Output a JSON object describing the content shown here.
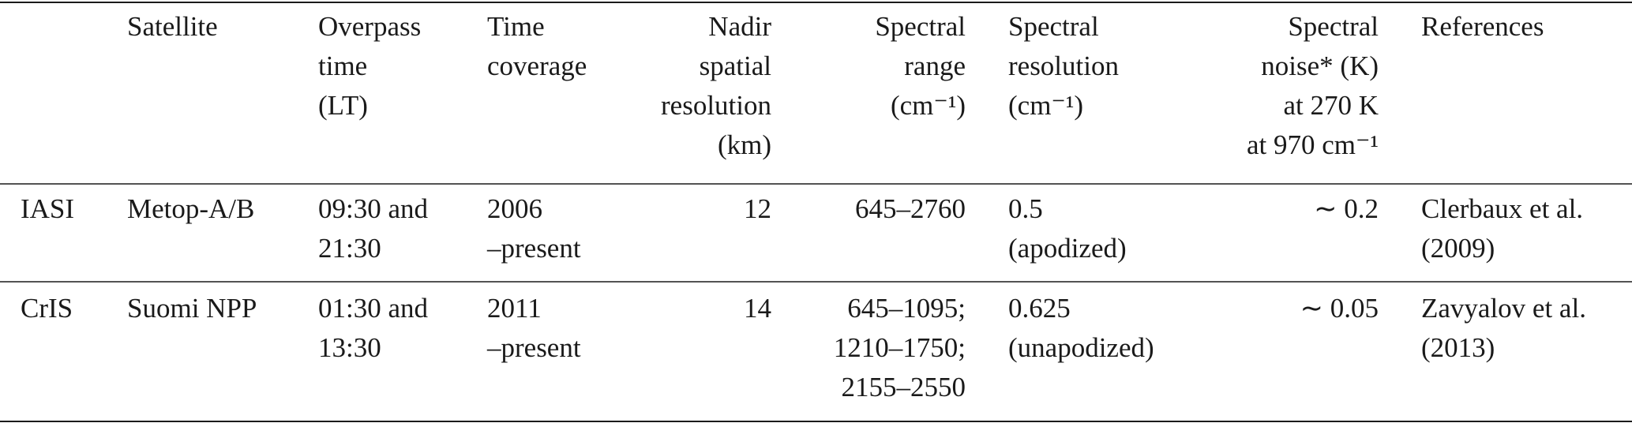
{
  "table": {
    "header": [
      [
        "Satellite"
      ],
      [
        "Overpass",
        "time",
        "(LT)"
      ],
      [
        "Time",
        "coverage"
      ],
      [
        "Nadir",
        "spatial",
        "resolution",
        "(km)"
      ],
      [
        "Spectral",
        "range",
        "(cm⁻¹)"
      ],
      [
        "Spectral",
        "resolution",
        "(cm⁻¹)"
      ],
      [
        "Spectral",
        "noise* (K)",
        "at 270 K",
        "at 970 cm⁻¹"
      ],
      [
        "References"
      ]
    ],
    "rows": [
      [
        [
          "IASI"
        ],
        [
          "Metop-A/B"
        ],
        [
          "09:30 and",
          "21:30"
        ],
        [
          "2006",
          "–present"
        ],
        [
          "12"
        ],
        [
          "645–2760"
        ],
        [
          "0.5",
          "(apodized)"
        ],
        [
          "∼ 0.2"
        ],
        [
          "Clerbaux et al.",
          "(2009)"
        ]
      ],
      [
        [
          "CrIS"
        ],
        [
          "Suomi NPP"
        ],
        [
          "01:30 and",
          "13:30"
        ],
        [
          "2011",
          "–present"
        ],
        [
          "14"
        ],
        [
          "645–1095;",
          "1210–1750;",
          "2155–2550"
        ],
        [
          "0.625",
          "(unapodized)"
        ],
        [
          "∼ 0.05"
        ],
        [
          "Zavyalov et al.",
          "(2013)"
        ]
      ]
    ]
  }
}
